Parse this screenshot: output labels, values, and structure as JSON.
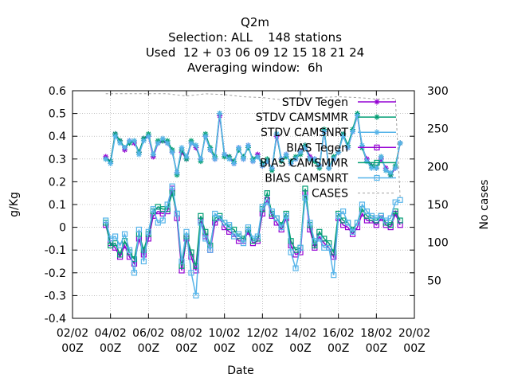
{
  "chart_data": {
    "type": "line",
    "title_lines": [
      "Q2m",
      "Selection: ALL    148 stations",
      "Used  12 + 03 06 09 12 15 18 21 24",
      "Averaging window:  6h"
    ],
    "xlabel": "Date",
    "ylabel": "g/Kg",
    "y2label": "No cases",
    "xlim": [
      0,
      18
    ],
    "ylim": [
      -0.4,
      0.6
    ],
    "y2lim": [
      0,
      300
    ],
    "x_ticks": [
      "02/02\n00Z",
      "04/02\n00Z",
      "06/02\n00Z",
      "08/02\n00Z",
      "10/02\n00Z",
      "12/02\n00Z",
      "14/02\n00Z",
      "16/02\n00Z",
      "18/02\n00Z",
      "20/02\n00Z"
    ],
    "y_ticks": [
      "0.6",
      "0.5",
      "0.4",
      "0.3",
      "0.2",
      "0.1",
      "0",
      "-0.1",
      "-0.2",
      "-0.3",
      "-0.4"
    ],
    "y2_ticks": [
      "300",
      "250",
      "200",
      "150",
      "100",
      "50"
    ],
    "grid": true,
    "legend_position": "top-right",
    "x": [
      1.75,
      2.0,
      2.25,
      2.5,
      2.75,
      3.0,
      3.25,
      3.5,
      3.75,
      4.0,
      4.25,
      4.5,
      4.75,
      5.0,
      5.25,
      5.5,
      5.75,
      6.0,
      6.25,
      6.5,
      6.75,
      7.0,
      7.25,
      7.5,
      7.75,
      8.0,
      8.25,
      8.5,
      8.75,
      9.0,
      9.25,
      9.5,
      9.75,
      10.0,
      10.25,
      10.5,
      10.75,
      11.0,
      11.25,
      11.5,
      11.75,
      12.0,
      12.25,
      12.5,
      12.75,
      13.0,
      13.25,
      13.5,
      13.75,
      14.0,
      14.25,
      14.5,
      14.75,
      15.0,
      15.25,
      15.5,
      15.75,
      16.0,
      16.25,
      16.5,
      16.75,
      17.0,
      17.25
    ],
    "series": [
      {
        "name": "STDV Tegen",
        "color": "#9400d3",
        "marker": "star",
        "dash": false,
        "values": [
          0.31,
          0.29,
          0.41,
          0.38,
          0.34,
          0.38,
          0.37,
          0.33,
          0.39,
          0.4,
          0.31,
          0.37,
          0.38,
          0.37,
          0.33,
          0.24,
          0.33,
          0.3,
          0.37,
          0.35,
          0.3,
          0.4,
          0.34,
          0.3,
          0.49,
          0.32,
          0.31,
          0.28,
          0.35,
          0.3,
          0.36,
          0.29,
          0.32,
          0.27,
          0.29,
          0.26,
          0.4,
          0.3,
          0.32,
          0.28,
          0.3,
          0.33,
          0.36,
          0.31,
          0.3,
          0.27,
          0.42,
          0.26,
          0.3,
          0.33,
          0.41,
          0.35,
          0.42,
          0.49,
          0.35,
          0.3,
          0.27,
          0.26,
          0.3,
          0.26,
          0.23,
          0.26,
          0.37
        ]
      },
      {
        "name": "STDV CAMSMMR",
        "color": "#009e73",
        "marker": "star",
        "dash": false,
        "values": [
          0.3,
          0.29,
          0.41,
          0.38,
          0.35,
          0.37,
          0.38,
          0.33,
          0.39,
          0.41,
          0.32,
          0.38,
          0.38,
          0.38,
          0.34,
          0.23,
          0.34,
          0.3,
          0.38,
          0.36,
          0.29,
          0.41,
          0.35,
          0.31,
          0.5,
          0.31,
          0.31,
          0.29,
          0.34,
          0.31,
          0.35,
          0.3,
          0.31,
          0.28,
          0.3,
          0.25,
          0.41,
          0.29,
          0.31,
          0.29,
          0.31,
          0.32,
          0.36,
          0.3,
          0.29,
          0.26,
          0.43,
          0.26,
          0.31,
          0.33,
          0.41,
          0.36,
          0.43,
          0.5,
          0.35,
          0.29,
          0.27,
          0.26,
          0.31,
          0.25,
          0.23,
          0.27,
          0.37
        ]
      },
      {
        "name": "STDV CAMSNRT",
        "color": "#56b4e9",
        "marker": "star",
        "dash": false,
        "values": [
          0.3,
          0.28,
          0.4,
          0.37,
          0.35,
          0.38,
          0.38,
          0.32,
          0.38,
          0.4,
          0.32,
          0.37,
          0.39,
          0.37,
          0.33,
          0.24,
          0.35,
          0.31,
          0.37,
          0.36,
          0.3,
          0.4,
          0.34,
          0.3,
          0.5,
          0.32,
          0.3,
          0.28,
          0.35,
          0.3,
          0.36,
          0.29,
          0.31,
          0.27,
          0.29,
          0.26,
          0.41,
          0.3,
          0.32,
          0.28,
          0.3,
          0.33,
          0.35,
          0.3,
          0.3,
          0.27,
          0.42,
          0.26,
          0.3,
          0.33,
          0.4,
          0.35,
          0.42,
          0.49,
          0.36,
          0.29,
          0.26,
          0.26,
          0.31,
          0.25,
          0.24,
          0.26,
          0.37
        ]
      },
      {
        "name": "BIAS Tegen",
        "color": "#9400d3",
        "marker": "square",
        "dash": false,
        "values": [
          0.01,
          -0.07,
          -0.09,
          -0.13,
          -0.08,
          -0.13,
          -0.16,
          -0.05,
          -0.12,
          -0.05,
          0.05,
          0.07,
          0.06,
          0.07,
          0.17,
          0.04,
          -0.19,
          -0.05,
          -0.13,
          -0.19,
          0.03,
          -0.04,
          -0.1,
          0.02,
          0.04,
          0.0,
          -0.02,
          -0.03,
          -0.06,
          -0.06,
          -0.02,
          -0.07,
          -0.06,
          0.06,
          0.12,
          0.05,
          0.02,
          -0.01,
          0.04,
          -0.08,
          -0.12,
          -0.11,
          0.15,
          -0.01,
          -0.09,
          -0.04,
          -0.07,
          -0.09,
          -0.13,
          0.04,
          0.01,
          0.0,
          -0.03,
          0.0,
          0.06,
          0.03,
          0.03,
          0.01,
          0.04,
          0.01,
          0.0,
          0.06,
          0.01
        ]
      },
      {
        "name": "BIAS CAMSMMR",
        "color": "#009e73",
        "marker": "square",
        "dash": false,
        "values": [
          0.02,
          -0.08,
          -0.07,
          -0.12,
          -0.06,
          -0.11,
          -0.14,
          -0.03,
          -0.1,
          -0.03,
          0.07,
          0.09,
          0.08,
          0.08,
          0.15,
          0.06,
          -0.17,
          -0.04,
          -0.11,
          -0.17,
          0.05,
          -0.02,
          -0.08,
          0.04,
          0.05,
          0.02,
          0.0,
          -0.01,
          -0.04,
          -0.05,
          -0.01,
          -0.06,
          -0.05,
          0.08,
          0.15,
          0.06,
          0.04,
          0.01,
          0.06,
          -0.06,
          -0.1,
          -0.09,
          0.17,
          0.01,
          -0.08,
          -0.02,
          -0.05,
          -0.07,
          -0.11,
          0.06,
          0.03,
          0.02,
          -0.01,
          0.02,
          0.08,
          0.05,
          0.04,
          0.03,
          0.05,
          0.02,
          0.01,
          0.07,
          0.03
        ]
      },
      {
        "name": "BIAS CAMSNRT",
        "color": "#56b4e9",
        "marker": "square",
        "dash": false,
        "values": [
          0.03,
          -0.05,
          -0.04,
          -0.08,
          -0.03,
          -0.1,
          -0.2,
          -0.01,
          -0.15,
          -0.02,
          0.08,
          0.02,
          0.03,
          0.1,
          0.18,
          0.06,
          -0.15,
          -0.02,
          -0.2,
          -0.3,
          0.02,
          -0.05,
          -0.1,
          0.06,
          0.04,
          0.02,
          0.01,
          -0.04,
          -0.03,
          -0.07,
          0.0,
          -0.05,
          -0.04,
          0.09,
          0.11,
          0.07,
          0.04,
          0.0,
          0.05,
          -0.11,
          -0.18,
          -0.09,
          0.13,
          0.02,
          -0.06,
          -0.05,
          -0.09,
          -0.09,
          -0.21,
          0.05,
          0.07,
          0.02,
          -0.02,
          0.02,
          0.1,
          0.07,
          0.05,
          0.04,
          0.05,
          0.03,
          0.04,
          0.11,
          0.12
        ]
      },
      {
        "name": "CASES",
        "color": "#a0a0a0",
        "marker": "none",
        "dash": true,
        "axis": "y2",
        "x": [
          1.75,
          2.0,
          3.0,
          4.0,
          5.0,
          6.0,
          7.0,
          8.0,
          9.0,
          10.0,
          11.0,
          12.0,
          13.0,
          14.0,
          15.0,
          16.0,
          17.0,
          17.25
        ],
        "values": [
          296,
          296,
          296,
          296,
          296,
          293,
          296,
          295,
          292,
          291,
          288,
          290,
          291,
          292,
          291,
          289,
          290,
          160
        ]
      }
    ]
  }
}
